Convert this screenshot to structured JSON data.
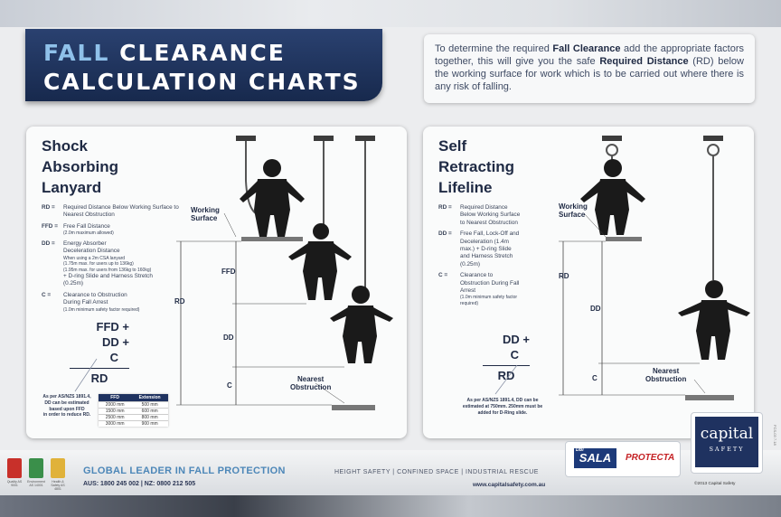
{
  "header": {
    "title_highlight": "FALL",
    "title_rest": "CLEARANCE",
    "title_line2": "CALCULATION CHARTS"
  },
  "intro": {
    "part1": "To determine the required ",
    "bold1": "Fall Clearance",
    "part2": " add the appropriate factors together, this will give you the safe ",
    "bold2": "Required Distance",
    "part3": " (RD) below the working surface for work which is to be carried out where there is any risk of falling."
  },
  "left_card": {
    "title_lines": [
      "Shock",
      "Absorbing",
      "Lanyard"
    ],
    "legend": [
      {
        "key": "RD =",
        "lines": [
          "Required Distance Below Working Surface to",
          "Nearest Obstruction"
        ],
        "small": []
      },
      {
        "key": "FFD =",
        "lines": [
          "Free Fall Distance"
        ],
        "small": [
          "(2.0m maximum allowed)"
        ]
      },
      {
        "key": "DD =",
        "lines": [
          "Energy Absorber",
          "Deceleration Distance"
        ],
        "small": [
          "When using a 2m CSA lanyard",
          "(1.75m max. for users up to 136kg)",
          "(1.95m max. for users from 136kg to 160kg)"
        ],
        "after": [
          "+ D-ring Slide and Harness Stretch",
          "(0.25m)"
        ]
      },
      {
        "key": "C =",
        "lines": [
          "Clearance to Obstruction",
          "During Fall Arrest"
        ],
        "small": [
          "(1.0m minimum safety factor required)"
        ]
      }
    ],
    "formula": [
      "FFD +",
      "DD +",
      "C",
      "RD"
    ],
    "note": [
      "As per AS/NZS 1891.4,",
      "DD can be estimated",
      "based upon FFD",
      "in order to reduce RD."
    ],
    "table": {
      "headers": [
        "FFD",
        "Extension"
      ],
      "rows": [
        [
          "2000 mm",
          "500 mm"
        ],
        [
          "1500 mm",
          "600 mm"
        ],
        [
          "2500 mm",
          "800 mm"
        ],
        [
          "3000 mm",
          "900 mm"
        ]
      ]
    },
    "diagram": {
      "working_surface": "Working\nSurface",
      "working_surface_l1": "Working",
      "working_surface_l2": "Surface",
      "ffd": "FFD",
      "dd": "DD",
      "c": "C",
      "rd": "RD",
      "nearest_l1": "Nearest",
      "nearest_l2": "Obstruction"
    }
  },
  "right_card": {
    "title_lines": [
      "Self",
      "Retracting",
      "Lifeline"
    ],
    "legend": [
      {
        "key": "RD =",
        "lines": [
          "Required Distance",
          "Below Working Surface",
          "to Nearest Obstruction"
        ],
        "small": []
      },
      {
        "key": "DD =",
        "lines": [
          "Free Fall, Lock-Off and",
          "Deceleration (1.4m",
          "max.) + D-ring Slide",
          "and Harness Stretch",
          "(0.25m)"
        ],
        "small": []
      },
      {
        "key": "C =",
        "lines": [
          "Clearance to",
          "Obstruction During Fall",
          "Arrest"
        ],
        "small": [
          "(1.0m minimum safety factor",
          "required)"
        ]
      }
    ],
    "formula": [
      "DD +",
      "C",
      "RD"
    ],
    "note": [
      "As per AS/NZS 1891.4, DD can be",
      "estimated at 750mm. 250mm must be",
      "added for D-Ring slide."
    ],
    "diagram": {
      "working_surface_l1": "Working",
      "working_surface_l2": "Surface",
      "rd": "RD",
      "dd": "DD",
      "c": "C",
      "nearest_l1": "Nearest",
      "nearest_l2": "Obstruction"
    }
  },
  "footer": {
    "tagline": "GLOBAL LEADER IN FALL PROTECTION",
    "contact": "AUS: 1800 245 002  |  NZ: 0800 212 505",
    "services": "HEIGHT SAFETY  |  CONFINED SPACE  |  INDUSTRIAL RESCUE",
    "website": "www.capitalsafety.com.au",
    "icon_captions": [
      "Quality\nAS 9001",
      "Environment\nAS 14001",
      "Health & Safety\nAS 4801"
    ],
    "icon_colors": [
      "#c8302a",
      "#3a8f4a",
      "#e0b23a"
    ]
  },
  "brands": {
    "dbi_small": "DBI",
    "dbi": "SALA",
    "protecta": "PROTECTA",
    "capital_l1": "capital",
    "capital_l2": "SAFETY",
    "copyright": "©2013 Capital Safety",
    "side_code": "FCS-03 7.18"
  }
}
